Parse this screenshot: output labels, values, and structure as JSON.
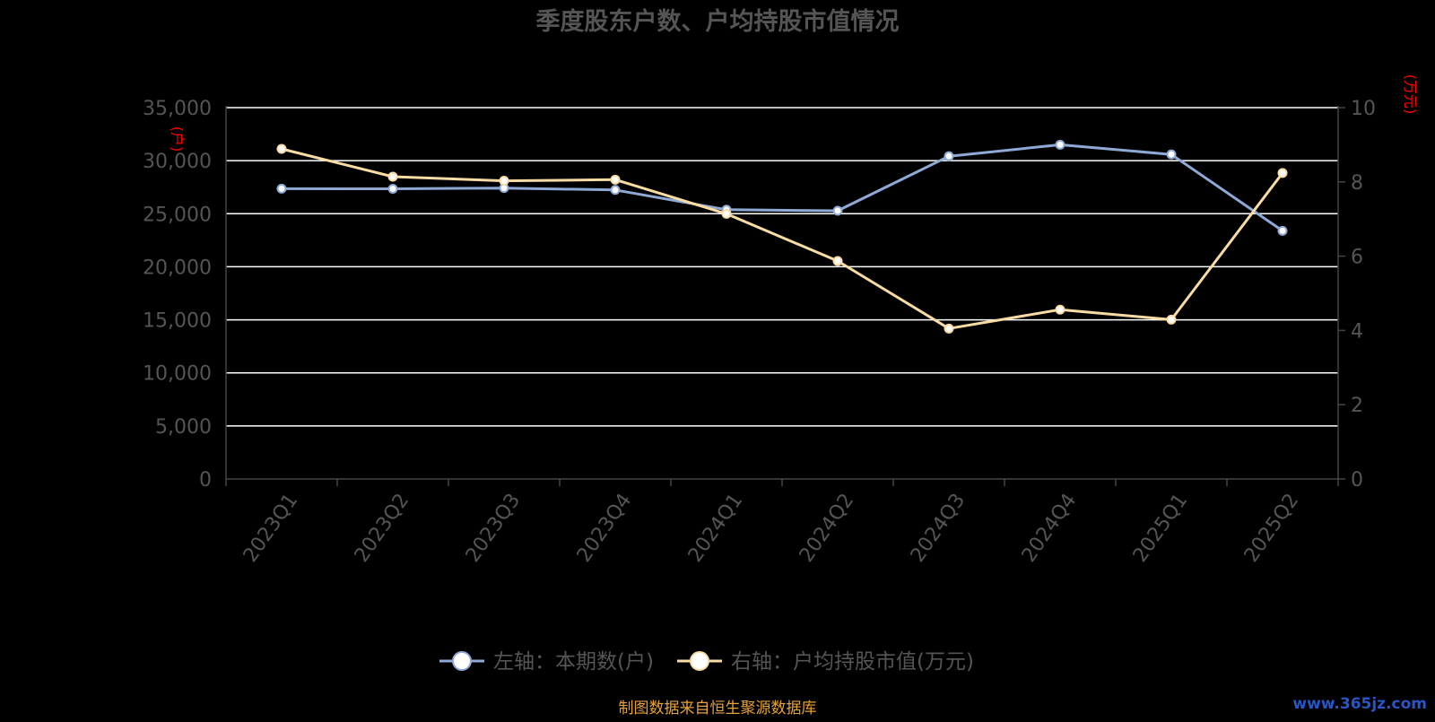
{
  "chart_data": {
    "type": "line",
    "title": "季度股东户数、户均持股市值情况",
    "categories": [
      "2023Q1",
      "2023Q2",
      "2023Q3",
      "2023Q4",
      "2024Q1",
      "2024Q2",
      "2024Q3",
      "2024Q4",
      "2025Q1",
      "2025Q2"
    ],
    "y_left": {
      "unit_label": "(户)",
      "range": [
        0,
        35000
      ],
      "ticks": [
        "0",
        "5,000",
        "10,000",
        "15,000",
        "20,000",
        "25,000",
        "30,000",
        "35,000"
      ]
    },
    "y_right": {
      "unit_label": "(万元)",
      "range": [
        0,
        10
      ],
      "ticks": [
        "0",
        "2",
        "4",
        "6",
        "8",
        "10"
      ]
    },
    "series": [
      {
        "name": "左轴：本期数(户)",
        "axis": "left",
        "color": "#8fa9d6",
        "values": [
          27360,
          27350,
          27420,
          27240,
          25380,
          25280,
          30420,
          31500,
          30590,
          23390
        ]
      },
      {
        "name": "右轴：户均持股市值(万元)",
        "axis": "right",
        "color": "#f8dca3",
        "values": [
          8.89,
          8.14,
          8.03,
          8.06,
          7.14,
          5.87,
          4.05,
          4.56,
          4.29,
          8.24
        ]
      }
    ],
    "grid": true,
    "legend_position": "bottom-center"
  },
  "source_note": "制图数据来自恒生聚源数据库",
  "watermark": "www.365jz.com",
  "colors": {
    "background": "#000000",
    "title": "#555555",
    "axis_text": "#555555",
    "grid": "#ffffff",
    "unit_label": "#ff0000",
    "source_note": "#e6a23c",
    "watermark": "#2a55c8"
  }
}
